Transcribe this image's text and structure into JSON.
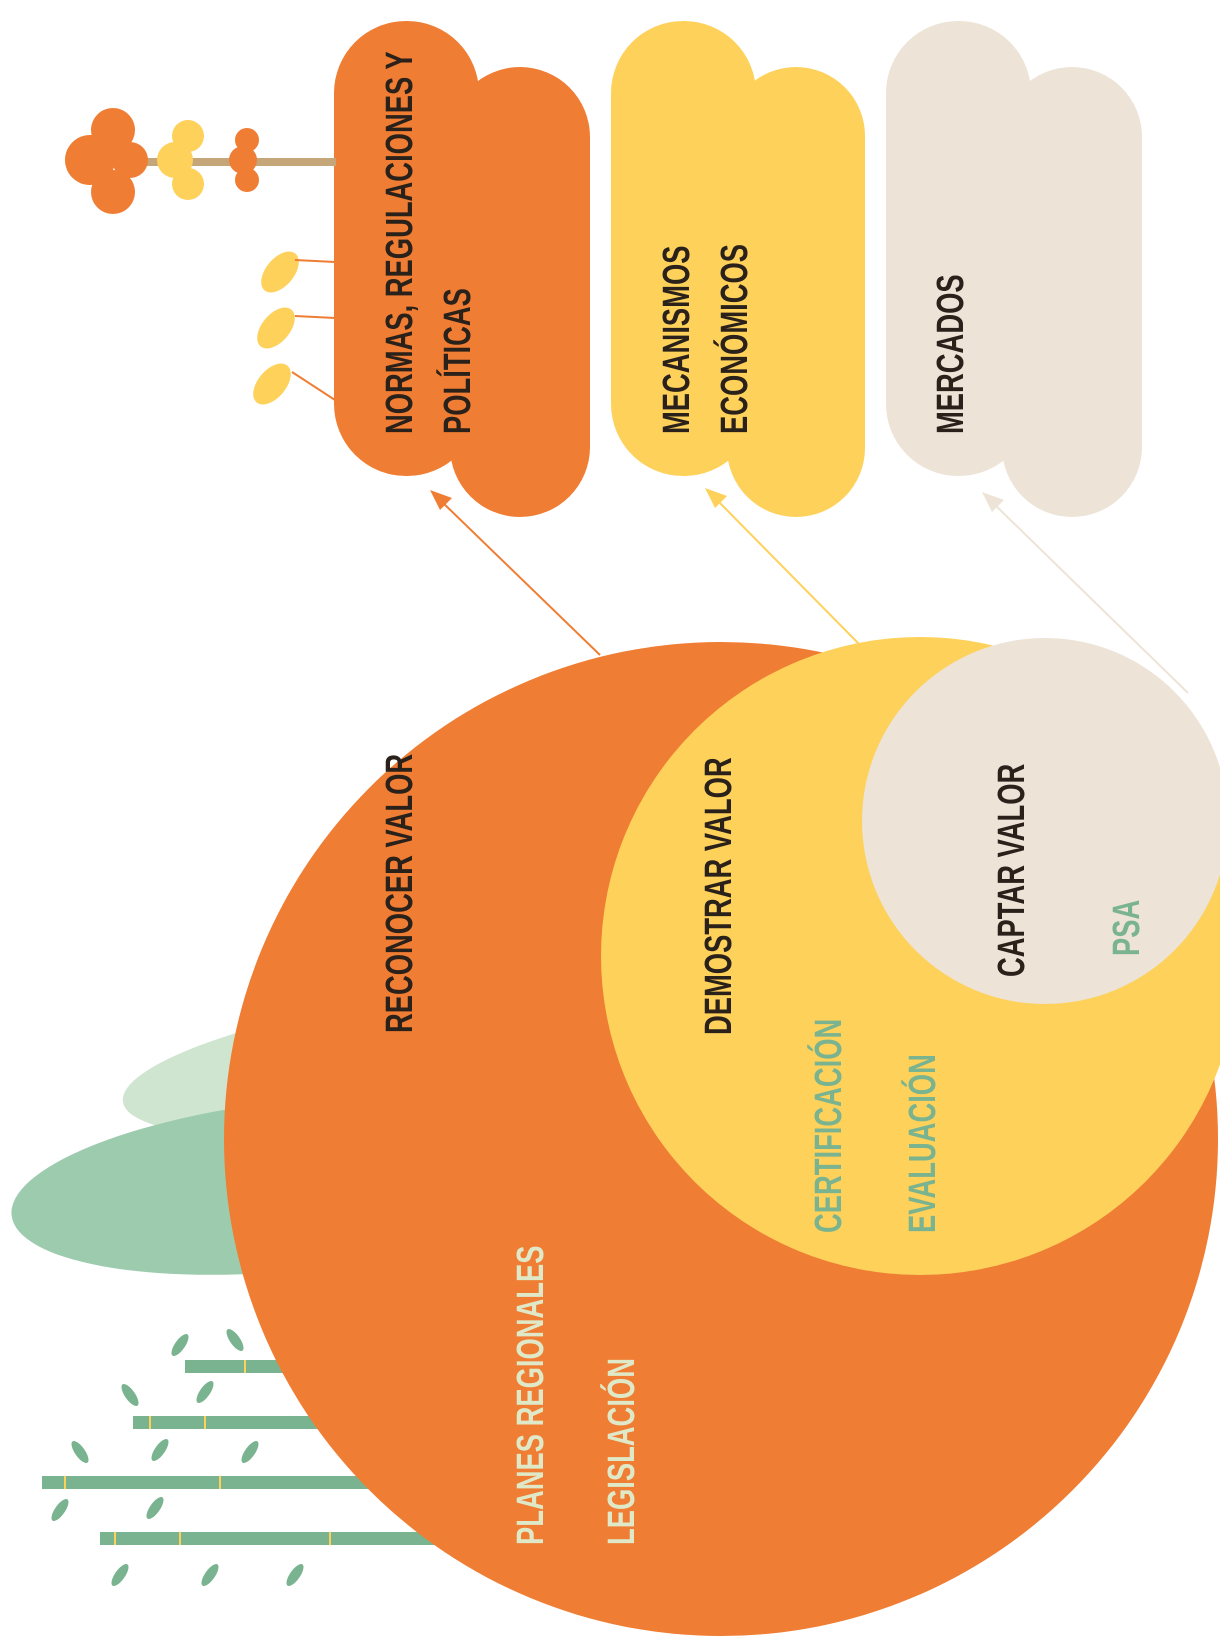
{
  "clouds": [
    {
      "lines": [
        "NORMAS, REGULACIONES Y",
        "POLÍTICAS"
      ]
    },
    {
      "lines": [
        "MECANISMOS",
        "ECONÓMICOS"
      ]
    },
    {
      "lines": [
        "MERCADOS"
      ]
    }
  ],
  "circles": [
    {
      "label": "RECONOCER VALOR",
      "items": [
        "PLANES REGIONALES",
        "LEGISLACIÓN"
      ]
    },
    {
      "label": "DEMOSTRAR VALOR",
      "items": [
        "CERTIFICACIÓN",
        "EVALUACIÓN"
      ]
    },
    {
      "label": "CAPTAR VALOR",
      "items": [
        "PSA"
      ]
    }
  ]
}
